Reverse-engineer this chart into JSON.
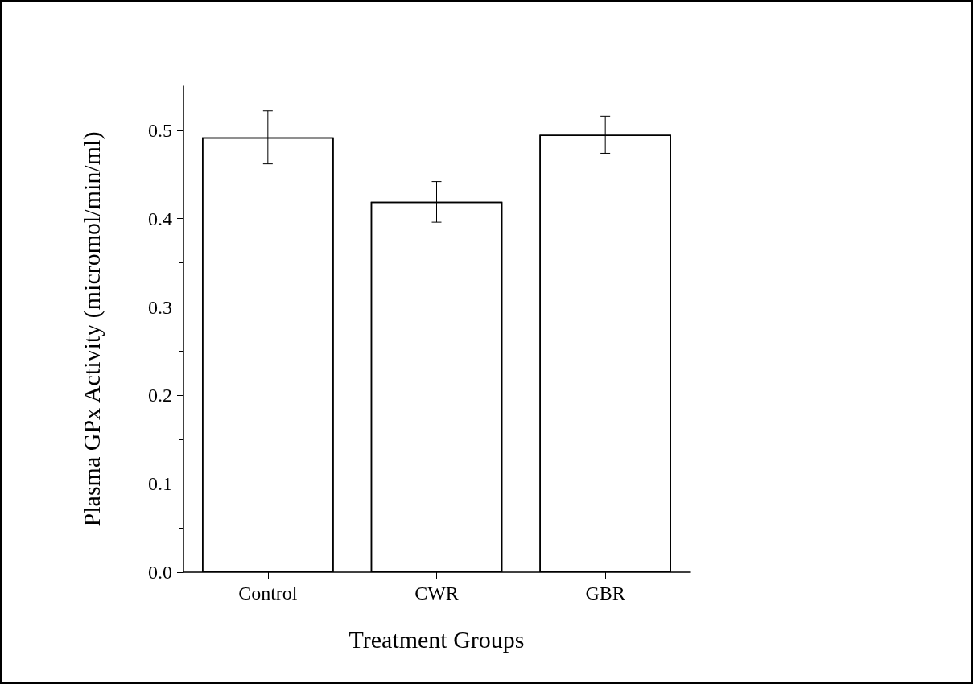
{
  "chart_data": {
    "type": "bar",
    "xlabel": "Treatment Groups",
    "ylabel": "Plasma GPx Activity (micromol/min/ml)",
    "categories": [
      "Control",
      "CWR",
      "GBR"
    ],
    "series": [
      {
        "color": "#ffffff",
        "values": [
          0.492,
          0.419,
          0.495
        ],
        "errors": [
          0.03,
          0.023,
          0.021
        ]
      }
    ],
    "ylim": [
      0,
      0.55
    ],
    "yticks": [
      {
        "value": 0,
        "label": "0.0"
      },
      {
        "value": 0.1,
        "label": "0.1"
      },
      {
        "value": 0.2,
        "label": "0.2"
      },
      {
        "value": 0.3,
        "label": "0.3"
      },
      {
        "value": 0.4,
        "label": "0.4"
      },
      {
        "value": 0.5,
        "label": "0.5"
      }
    ],
    "grid": false
  }
}
